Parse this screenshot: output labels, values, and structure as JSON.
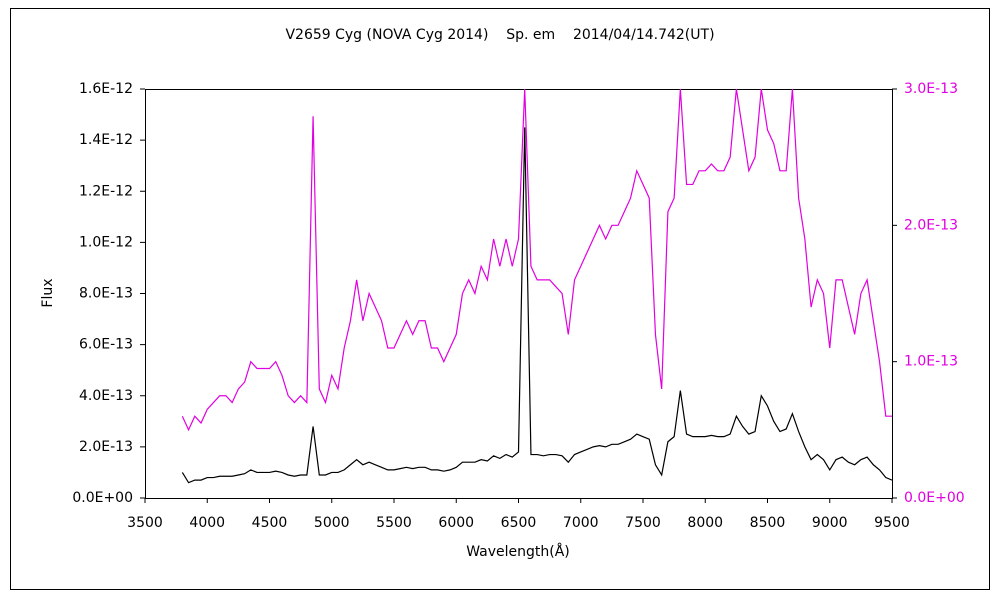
{
  "chart_data": {
    "type": "line",
    "title": "V2659 Cyg (NOVA Cyg 2014)    Sp. em    2014/04/14.742(UT)",
    "x_label": "Wavelength(Å)",
    "y_label": "Flux",
    "xlim": [
      3500,
      9500
    ],
    "xticks": [
      3500,
      4000,
      4500,
      5000,
      5500,
      6000,
      6500,
      7000,
      7500,
      8000,
      8500,
      9000,
      9500
    ],
    "ylim": [
      0,
      1.6e-12
    ],
    "yticks": [
      {
        "value": 0,
        "label": "0.0E+00"
      },
      {
        "value": 2e-13,
        "label": "2.0E-13"
      },
      {
        "value": 4e-13,
        "label": "4.0E-13"
      },
      {
        "value": 6e-13,
        "label": "6.0E-13"
      },
      {
        "value": 8e-13,
        "label": "8.0E-13"
      },
      {
        "value": 1e-12,
        "label": "1.0E-12"
      },
      {
        "value": 1.2e-12,
        "label": "1.2E-12"
      },
      {
        "value": 1.4e-12,
        "label": "1.4E-12"
      },
      {
        "value": 1.6e-12,
        "label": "1.6E-12"
      }
    ],
    "y2lim": [
      0,
      3e-13
    ],
    "y2ticks": [
      {
        "value": 0,
        "label": "0.0E+00"
      },
      {
        "value": 1e-13,
        "label": "1.0E-13"
      },
      {
        "value": 2e-13,
        "label": "2.0E-13"
      },
      {
        "value": 3e-13,
        "label": "3.0E-13"
      }
    ],
    "y2_color": "#e100e1",
    "x": [
      3800,
      3850,
      3900,
      3950,
      4000,
      4050,
      4100,
      4150,
      4200,
      4250,
      4300,
      4350,
      4400,
      4450,
      4500,
      4550,
      4600,
      4650,
      4700,
      4750,
      4800,
      4850,
      4900,
      4950,
      5000,
      5050,
      5100,
      5150,
      5200,
      5250,
      5300,
      5350,
      5400,
      5450,
      5500,
      5550,
      5600,
      5650,
      5700,
      5750,
      5800,
      5850,
      5900,
      5950,
      6000,
      6050,
      6100,
      6150,
      6200,
      6250,
      6300,
      6350,
      6400,
      6450,
      6500,
      6550,
      6600,
      6650,
      6700,
      6750,
      6800,
      6850,
      6900,
      6950,
      7000,
      7050,
      7100,
      7150,
      7200,
      7250,
      7300,
      7350,
      7400,
      7450,
      7500,
      7550,
      7600,
      7650,
      7700,
      7750,
      7800,
      7850,
      7900,
      7950,
      8000,
      8050,
      8100,
      8150,
      8200,
      8250,
      8300,
      8350,
      8400,
      8450,
      8500,
      8550,
      8600,
      8650,
      8700,
      8750,
      8800,
      8850,
      8900,
      8950,
      9000,
      9050,
      9100,
      9150,
      9200,
      9250,
      9300,
      9350,
      9400,
      9450,
      9500
    ],
    "series": [
      {
        "color": "#e100e1",
        "axis": "y2",
        "values": [
          6e-14,
          5e-14,
          6e-14,
          5.5e-14,
          6.5e-14,
          7e-14,
          7.5e-14,
          7.5e-14,
          7e-14,
          8e-14,
          8.5e-14,
          1e-13,
          9.5e-14,
          9.5e-14,
          9.5e-14,
          1e-13,
          9e-14,
          7.5e-14,
          7e-14,
          7.5e-14,
          7e-14,
          2.8e-13,
          8e-14,
          7e-14,
          9e-14,
          8e-14,
          1.1e-13,
          1.3e-13,
          1.6e-13,
          1.3e-13,
          1.5e-13,
          1.4e-13,
          1.3e-13,
          1.1e-13,
          1.1e-13,
          1.2e-13,
          1.3e-13,
          1.2e-13,
          1.3e-13,
          1.3e-13,
          1.1e-13,
          1.1e-13,
          1e-13,
          1.1e-13,
          1.2e-13,
          1.5e-13,
          1.6e-13,
          1.5e-13,
          1.7e-13,
          1.6e-13,
          1.9e-13,
          1.7e-13,
          1.9e-13,
          1.7e-13,
          1.9e-13,
          3e-13,
          1.7e-13,
          1.6e-13,
          1.6e-13,
          1.6e-13,
          1.55e-13,
          1.5e-13,
          1.2e-13,
          1.6e-13,
          1.7e-13,
          1.8e-13,
          1.9e-13,
          2e-13,
          1.9e-13,
          2e-13,
          2e-13,
          2.1e-13,
          2.2e-13,
          2.4e-13,
          2.3e-13,
          2.2e-13,
          1.2e-13,
          8e-14,
          2.1e-13,
          2.2e-13,
          3e-13,
          2.3e-13,
          2.3e-13,
          2.4e-13,
          2.4e-13,
          2.45e-13,
          2.4e-13,
          2.4e-13,
          2.5e-13,
          3e-13,
          2.7e-13,
          2.4e-13,
          2.5e-13,
          3e-13,
          2.7e-13,
          2.6e-13,
          2.4e-13,
          2.4e-13,
          3e-13,
          2.2e-13,
          1.9e-13,
          1.4e-13,
          1.6e-13,
          1.5e-13,
          1.1e-13,
          1.6e-13,
          1.6e-13,
          1.4e-13,
          1.2e-13,
          1.5e-13,
          1.6e-13,
          1.3e-13,
          1e-13,
          6e-14,
          6e-14
        ]
      },
      {
        "color": "#000000",
        "values": [
          1e-13,
          6e-14,
          7e-14,
          7e-14,
          8e-14,
          8e-14,
          8.5e-14,
          8.5e-14,
          8.5e-14,
          9e-14,
          9.5e-14,
          1.1e-13,
          1e-13,
          1e-13,
          1e-13,
          1.05e-13,
          1e-13,
          9e-14,
          8.5e-14,
          9e-14,
          9e-14,
          2.8e-13,
          9e-14,
          9e-14,
          1e-13,
          1e-13,
          1.1e-13,
          1.3e-13,
          1.5e-13,
          1.3e-13,
          1.4e-13,
          1.3e-13,
          1.2e-13,
          1.1e-13,
          1.1e-13,
          1.15e-13,
          1.2e-13,
          1.15e-13,
          1.2e-13,
          1.2e-13,
          1.1e-13,
          1.1e-13,
          1.05e-13,
          1.1e-13,
          1.2e-13,
          1.4e-13,
          1.4e-13,
          1.4e-13,
          1.5e-13,
          1.45e-13,
          1.65e-13,
          1.55e-13,
          1.7e-13,
          1.6e-13,
          1.8e-13,
          1.45e-12,
          1.7e-13,
          1.7e-13,
          1.65e-13,
          1.7e-13,
          1.7e-13,
          1.65e-13,
          1.4e-13,
          1.7e-13,
          1.8e-13,
          1.9e-13,
          2e-13,
          2.05e-13,
          2e-13,
          2.1e-13,
          2.1e-13,
          2.2e-13,
          2.3e-13,
          2.5e-13,
          2.4e-13,
          2.3e-13,
          1.3e-13,
          9e-14,
          2.2e-13,
          2.4e-13,
          4.2e-13,
          2.5e-13,
          2.4e-13,
          2.4e-13,
          2.4e-13,
          2.45e-13,
          2.4e-13,
          2.4e-13,
          2.5e-13,
          3.2e-13,
          2.8e-13,
          2.5e-13,
          2.6e-13,
          4e-13,
          3.6e-13,
          3e-13,
          2.6e-13,
          2.7e-13,
          3.3e-13,
          2.6e-13,
          2e-13,
          1.5e-13,
          1.7e-13,
          1.5e-13,
          1.1e-13,
          1.5e-13,
          1.6e-13,
          1.4e-13,
          1.3e-13,
          1.5e-13,
          1.6e-13,
          1.3e-13,
          1.1e-13,
          8e-14,
          7e-14
        ]
      }
    ]
  }
}
